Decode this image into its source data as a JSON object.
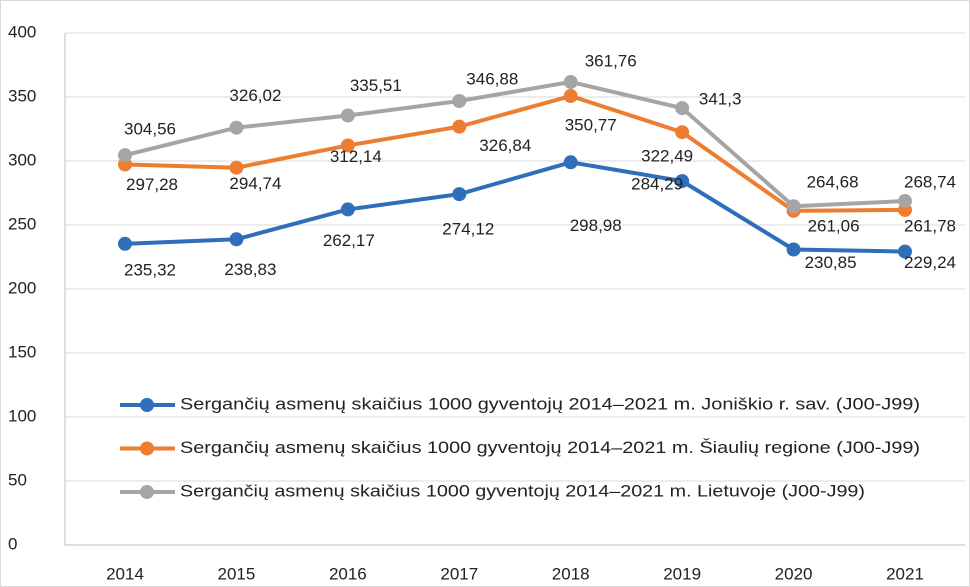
{
  "chart_data": {
    "type": "line",
    "categories": [
      "2014",
      "2015",
      "2016",
      "2017",
      "2018",
      "2019",
      "2020",
      "2021"
    ],
    "ylim": [
      0,
      400
    ],
    "yticks": [
      0,
      50,
      100,
      150,
      200,
      250,
      300,
      350,
      400
    ],
    "grid": true,
    "legend": "inside",
    "series": [
      {
        "name": "Sergančių asmenų skaičius 1000 gyventojų 2014–2021 m. Joniškio r. sav. (J00-J99)",
        "color": "#2f6eba",
        "values": [
          235.32,
          238.83,
          262.17,
          274.12,
          298.98,
          284.29,
          230.85,
          229.24
        ],
        "value_labels": [
          "235,32",
          "238,83",
          "262,17",
          "274,12",
          "298,98",
          "284,29",
          "230,85",
          "229,24"
        ]
      },
      {
        "name": "Sergančių asmenų skaičius 1000 gyventojų 2014–2021 m. Šiaulių regione (J00-J99)",
        "color": "#ed7d31",
        "values": [
          297.28,
          294.74,
          312.14,
          326.84,
          350.77,
          322.49,
          261.06,
          261.78
        ],
        "value_labels": [
          "297,28",
          "294,74",
          "312,14",
          "326,84",
          "350,77",
          "322,49",
          "261,06",
          "261,78"
        ]
      },
      {
        "name": "Sergančių asmenų skaičius 1000 gyventojų 2014–2021 m. Lietuvoje (J00-J99)",
        "color": "#a5a5a5",
        "values": [
          304.56,
          326.02,
          335.51,
          346.88,
          361.76,
          341.3,
          264.68,
          268.74
        ],
        "value_labels": [
          "304,56",
          "326,02",
          "335,51",
          "346,88",
          "361,76",
          "341,3",
          "264,68",
          "268,74"
        ]
      }
    ]
  }
}
